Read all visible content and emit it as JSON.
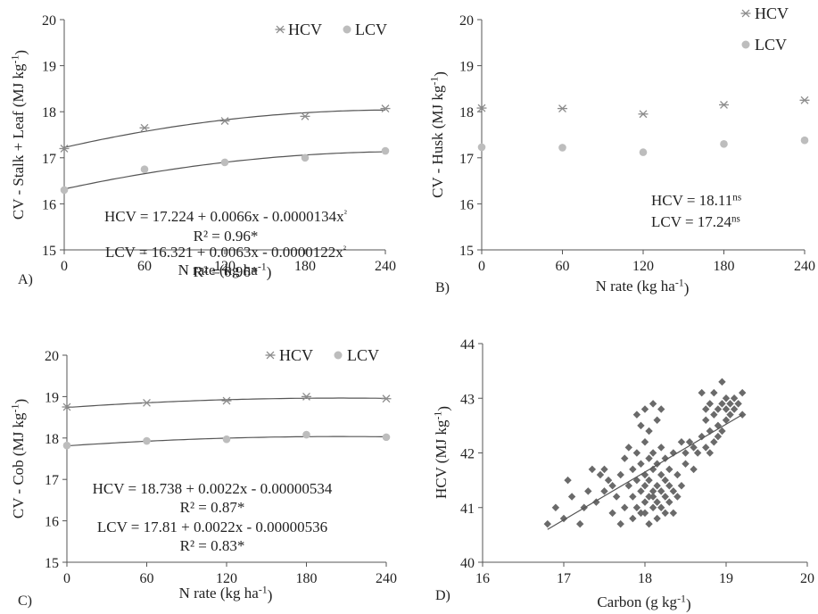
{
  "chart_data": [
    {
      "type": "scatter",
      "panel_label": "A)",
      "xlabel": "N rate (kg ha-1)",
      "ylabel": "CV - Stalk + Leaf (MJ kg-1)",
      "xlim": [
        0,
        240
      ],
      "ylim": [
        15,
        20
      ],
      "x_ticks": [
        0,
        60,
        120,
        180,
        240
      ],
      "y_ticks": [
        15,
        16,
        17,
        18,
        19,
        20
      ],
      "legend_placement": "top-right",
      "grid": false,
      "series": [
        {
          "name": "HCV",
          "marker": "asterisk",
          "x": [
            0,
            60,
            120,
            180,
            240
          ],
          "y": [
            17.2,
            17.65,
            17.8,
            17.9,
            18.07
          ],
          "fit": {
            "a": 17.224,
            "b": 0.0066,
            "c": -1.34e-05
          }
        },
        {
          "name": "LCV",
          "marker": "circle",
          "x": [
            0,
            60,
            120,
            180,
            240
          ],
          "y": [
            16.3,
            16.75,
            16.9,
            17.0,
            17.15
          ],
          "fit": {
            "a": 16.321,
            "b": 0.0063,
            "c": -1.22e-05
          }
        }
      ],
      "annotations": [
        "HCV = 17.224 + 0.0066x - 0.0000134x²",
        "R² = 0.96*",
        "LCV = 16.321 + 0.0063x - 0.0000122x²",
        "R² = 0.96*"
      ]
    },
    {
      "type": "scatter",
      "panel_label": "B)",
      "xlabel": "N rate (kg ha-1)",
      "ylabel": "CV - Husk (MJ kg-1)",
      "xlim": [
        0,
        240
      ],
      "ylim": [
        15,
        20
      ],
      "x_ticks": [
        0,
        60,
        120,
        180,
        240
      ],
      "y_ticks": [
        15,
        16,
        17,
        18,
        19,
        20
      ],
      "legend_placement": "top-right",
      "grid": false,
      "series": [
        {
          "name": "HCV",
          "marker": "asterisk",
          "x": [
            0,
            60,
            120,
            180,
            240
          ],
          "y": [
            18.08,
            18.07,
            17.95,
            18.15,
            18.25
          ]
        },
        {
          "name": "LCV",
          "marker": "circle",
          "x": [
            0,
            60,
            120,
            180,
            240
          ],
          "y": [
            17.23,
            17.22,
            17.12,
            17.3,
            17.38
          ]
        }
      ],
      "annotations": [
        "HCV = 18.11ns",
        "LCV = 17.24ns"
      ]
    },
    {
      "type": "scatter",
      "panel_label": "C)",
      "xlabel": "N rate (kg ha-1)",
      "ylabel": "CV - Cob (MJ kg-1)",
      "xlim": [
        0,
        240
      ],
      "ylim": [
        15,
        20
      ],
      "x_ticks": [
        0,
        60,
        120,
        180,
        240
      ],
      "y_ticks": [
        15,
        16,
        17,
        18,
        19,
        20
      ],
      "legend_placement": "top-right",
      "grid": false,
      "series": [
        {
          "name": "HCV",
          "marker": "asterisk",
          "x": [
            0,
            60,
            120,
            180,
            240
          ],
          "y": [
            18.75,
            18.85,
            18.9,
            19.0,
            18.95
          ],
          "fit": {
            "a": 18.738,
            "b": 0.0022,
            "c": -5.34e-06
          }
        },
        {
          "name": "LCV",
          "marker": "circle",
          "x": [
            0,
            60,
            120,
            180,
            240
          ],
          "y": [
            17.82,
            17.93,
            17.97,
            18.08,
            18.02
          ],
          "fit": {
            "a": 17.81,
            "b": 0.0022,
            "c": -5.36e-06
          }
        }
      ],
      "annotations": [
        "HCV = 18.738 + 0.0022x - 0.00000534",
        "R² = 0.87*",
        "LCV = 17.81 + 0.0022x - 0.00000536",
        "R² = 0.83*"
      ]
    },
    {
      "type": "scatter",
      "panel_label": "D)",
      "xlabel": "Carbon (g kg-1)",
      "ylabel": "HCV (MJ kg-1)",
      "xlim": [
        16,
        20
      ],
      "ylim": [
        40,
        44
      ],
      "x_ticks": [
        16,
        17,
        18,
        19,
        20
      ],
      "y_ticks": [
        40,
        41,
        42,
        43,
        44
      ],
      "grid": false,
      "trendline": {
        "x": [
          16.8,
          19.2
        ],
        "y": [
          40.6,
          42.7
        ]
      },
      "points": [
        [
          16.8,
          40.7
        ],
        [
          16.9,
          41.0
        ],
        [
          17.0,
          40.8
        ],
        [
          17.05,
          41.5
        ],
        [
          17.1,
          41.2
        ],
        [
          17.2,
          40.7
        ],
        [
          17.25,
          41.0
        ],
        [
          17.3,
          41.3
        ],
        [
          17.35,
          41.7
        ],
        [
          17.4,
          41.1
        ],
        [
          17.45,
          41.6
        ],
        [
          17.5,
          41.3
        ],
        [
          17.55,
          41.5
        ],
        [
          17.6,
          40.9
        ],
        [
          17.6,
          41.4
        ],
        [
          17.65,
          41.2
        ],
        [
          17.7,
          40.7
        ],
        [
          17.7,
          41.6
        ],
        [
          17.75,
          41.0
        ],
        [
          17.75,
          41.9
        ],
        [
          17.8,
          41.4
        ],
        [
          17.8,
          42.1
        ],
        [
          17.85,
          40.8
        ],
        [
          17.85,
          41.2
        ],
        [
          17.85,
          41.7
        ],
        [
          17.9,
          41.0
        ],
        [
          17.9,
          41.5
        ],
        [
          17.9,
          42.0
        ],
        [
          17.95,
          40.9
        ],
        [
          17.95,
          41.3
        ],
        [
          17.95,
          41.8
        ],
        [
          17.95,
          42.5
        ],
        [
          18.0,
          41.1
        ],
        [
          18.0,
          41.4
        ],
        [
          18.0,
          41.6
        ],
        [
          18.0,
          42.2
        ],
        [
          18.0,
          42.8
        ],
        [
          18.05,
          40.7
        ],
        [
          18.05,
          41.2
        ],
        [
          18.05,
          41.5
        ],
        [
          18.05,
          41.9
        ],
        [
          18.05,
          42.4
        ],
        [
          18.1,
          41.0
        ],
        [
          18.1,
          41.3
        ],
        [
          18.1,
          41.7
        ],
        [
          18.1,
          42.0
        ],
        [
          18.1,
          42.9
        ],
        [
          18.15,
          40.8
        ],
        [
          18.15,
          41.1
        ],
        [
          18.15,
          41.4
        ],
        [
          18.15,
          41.8
        ],
        [
          18.15,
          42.6
        ],
        [
          18.2,
          41.0
        ],
        [
          18.2,
          41.3
        ],
        [
          18.2,
          41.6
        ],
        [
          18.2,
          42.1
        ],
        [
          18.25,
          40.9
        ],
        [
          18.25,
          41.2
        ],
        [
          18.25,
          41.5
        ],
        [
          18.25,
          41.9
        ],
        [
          18.3,
          41.1
        ],
        [
          18.3,
          41.4
        ],
        [
          18.3,
          41.7
        ],
        [
          18.35,
          40.9
        ],
        [
          18.35,
          41.3
        ],
        [
          18.35,
          42.0
        ],
        [
          18.4,
          41.2
        ],
        [
          18.4,
          41.6
        ],
        [
          18.45,
          41.4
        ],
        [
          18.5,
          41.8
        ],
        [
          18.55,
          42.2
        ],
        [
          18.6,
          41.7
        ],
        [
          18.65,
          42.0
        ],
        [
          18.7,
          42.3
        ],
        [
          18.75,
          42.1
        ],
        [
          18.75,
          42.6
        ],
        [
          18.8,
          42.0
        ],
        [
          18.8,
          42.4
        ],
        [
          18.8,
          42.9
        ],
        [
          18.85,
          42.2
        ],
        [
          18.85,
          42.7
        ],
        [
          18.85,
          43.1
        ],
        [
          18.9,
          42.3
        ],
        [
          18.9,
          42.5
        ],
        [
          18.9,
          42.8
        ],
        [
          18.95,
          42.4
        ],
        [
          18.95,
          42.9
        ],
        [
          18.95,
          43.3
        ],
        [
          19.0,
          42.6
        ],
        [
          19.0,
          42.8
        ],
        [
          19.0,
          43.0
        ],
        [
          19.05,
          42.7
        ],
        [
          19.05,
          42.9
        ],
        [
          19.1,
          42.8
        ],
        [
          19.1,
          43.0
        ],
        [
          19.15,
          42.9
        ],
        [
          19.2,
          42.7
        ],
        [
          19.2,
          43.1
        ],
        [
          18.7,
          43.1
        ],
        [
          18.75,
          42.8
        ],
        [
          18.6,
          42.1
        ],
        [
          18.5,
          42.0
        ],
        [
          18.45,
          42.2
        ],
        [
          17.9,
          42.7
        ],
        [
          18.2,
          42.8
        ],
        [
          17.5,
          41.7
        ],
        [
          18.0,
          40.9
        ],
        [
          18.1,
          41.2
        ]
      ]
    }
  ]
}
